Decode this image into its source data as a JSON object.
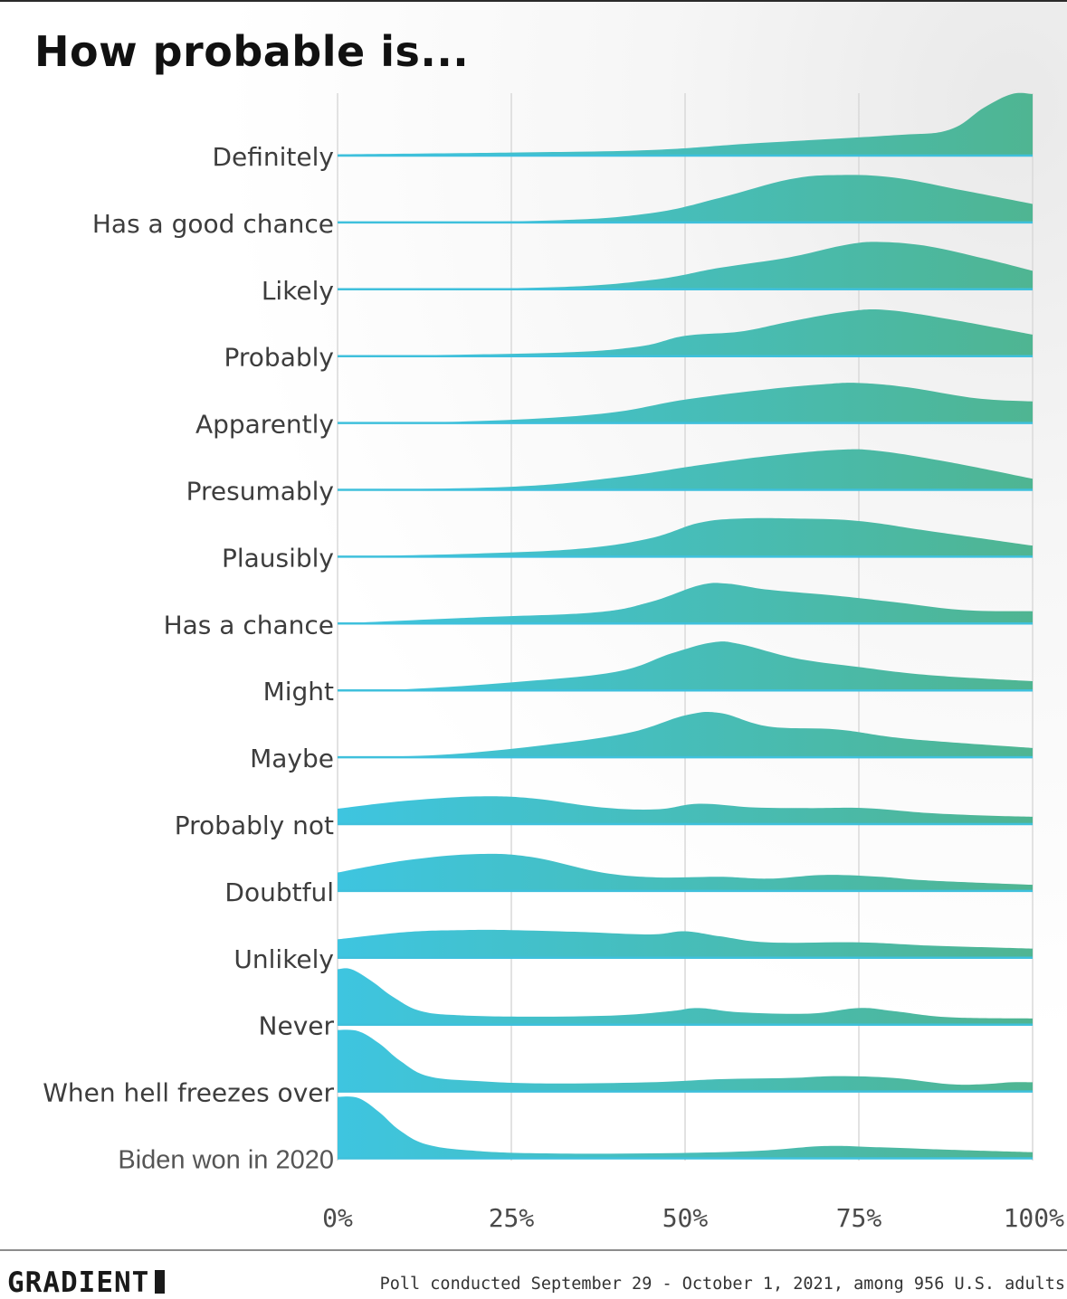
{
  "title": "How probable is...",
  "brand": "GRADIENT",
  "source_note": "Poll conducted September 29 - October 1, 2021, among 956 U.S. adults",
  "colors": {
    "left": "#3ec5e0",
    "right": "#4fb592",
    "grid": "#d9d9d9",
    "baseline": "#3fc0dc"
  },
  "chart_data": {
    "type": "ridgeline",
    "title": "How probable is...",
    "xlabel": "",
    "ylabel": "",
    "xlim": [
      0,
      100
    ],
    "x_ticks": [
      "0%",
      "25%",
      "50%",
      "75%",
      "100%"
    ],
    "x_tick_values": [
      0,
      25,
      50,
      75,
      100
    ],
    "density_scale_max": 1.0,
    "series": [
      {
        "name": "Definitely",
        "points": [
          [
            0,
            0.02
          ],
          [
            25,
            0.05
          ],
          [
            45,
            0.09
          ],
          [
            60,
            0.2
          ],
          [
            80,
            0.33
          ],
          [
            88,
            0.42
          ],
          [
            93,
            0.78
          ],
          [
            97,
            1.0
          ],
          [
            100,
            1.0
          ]
        ]
      },
      {
        "name": "Has a good chance",
        "points": [
          [
            0,
            0
          ],
          [
            30,
            0.03
          ],
          [
            45,
            0.15
          ],
          [
            55,
            0.4
          ],
          [
            65,
            0.7
          ],
          [
            72,
            0.77
          ],
          [
            80,
            0.73
          ],
          [
            90,
            0.52
          ],
          [
            100,
            0.3
          ]
        ]
      },
      {
        "name": "Likely",
        "points": [
          [
            0,
            0
          ],
          [
            30,
            0.03
          ],
          [
            45,
            0.15
          ],
          [
            55,
            0.35
          ],
          [
            65,
            0.52
          ],
          [
            73,
            0.72
          ],
          [
            78,
            0.77
          ],
          [
            85,
            0.7
          ],
          [
            93,
            0.5
          ],
          [
            100,
            0.3
          ]
        ]
      },
      {
        "name": "Probably",
        "points": [
          [
            0,
            0
          ],
          [
            30,
            0.05
          ],
          [
            43,
            0.15
          ],
          [
            50,
            0.33
          ],
          [
            58,
            0.4
          ],
          [
            65,
            0.56
          ],
          [
            73,
            0.72
          ],
          [
            79,
            0.75
          ],
          [
            88,
            0.6
          ],
          [
            100,
            0.35
          ]
        ]
      },
      {
        "name": "Apparently",
        "points": [
          [
            0,
            0
          ],
          [
            20,
            0.03
          ],
          [
            38,
            0.15
          ],
          [
            50,
            0.38
          ],
          [
            62,
            0.55
          ],
          [
            70,
            0.63
          ],
          [
            75,
            0.65
          ],
          [
            82,
            0.58
          ],
          [
            92,
            0.4
          ],
          [
            100,
            0.35
          ]
        ]
      },
      {
        "name": "Presumably",
        "points": [
          [
            0,
            0
          ],
          [
            25,
            0.05
          ],
          [
            40,
            0.2
          ],
          [
            52,
            0.4
          ],
          [
            62,
            0.55
          ],
          [
            72,
            0.65
          ],
          [
            78,
            0.63
          ],
          [
            88,
            0.45
          ],
          [
            100,
            0.18
          ]
        ]
      },
      {
        "name": "Plausibly",
        "points": [
          [
            0,
            0
          ],
          [
            20,
            0.05
          ],
          [
            35,
            0.13
          ],
          [
            45,
            0.3
          ],
          [
            52,
            0.55
          ],
          [
            58,
            0.62
          ],
          [
            66,
            0.62
          ],
          [
            75,
            0.58
          ],
          [
            85,
            0.42
          ],
          [
            100,
            0.18
          ]
        ]
      },
      {
        "name": "Has a chance",
        "points": [
          [
            0,
            0
          ],
          [
            20,
            0.1
          ],
          [
            37,
            0.18
          ],
          [
            45,
            0.35
          ],
          [
            52,
            0.62
          ],
          [
            56,
            0.65
          ],
          [
            62,
            0.55
          ],
          [
            72,
            0.45
          ],
          [
            80,
            0.35
          ],
          [
            90,
            0.22
          ],
          [
            100,
            0.2
          ]
        ]
      },
      {
        "name": "Might",
        "points": [
          [
            0,
            0
          ],
          [
            10,
            0.02
          ],
          [
            25,
            0.13
          ],
          [
            40,
            0.3
          ],
          [
            48,
            0.6
          ],
          [
            54,
            0.78
          ],
          [
            58,
            0.75
          ],
          [
            66,
            0.52
          ],
          [
            75,
            0.38
          ],
          [
            85,
            0.25
          ],
          [
            100,
            0.15
          ]
        ]
      },
      {
        "name": "Maybe",
        "points": [
          [
            0,
            0
          ],
          [
            15,
            0.04
          ],
          [
            30,
            0.2
          ],
          [
            42,
            0.4
          ],
          [
            50,
            0.68
          ],
          [
            55,
            0.72
          ],
          [
            62,
            0.5
          ],
          [
            72,
            0.45
          ],
          [
            82,
            0.3
          ],
          [
            100,
            0.15
          ]
        ]
      },
      {
        "name": "Probably not",
        "points": [
          [
            0,
            0.25
          ],
          [
            10,
            0.38
          ],
          [
            20,
            0.45
          ],
          [
            28,
            0.42
          ],
          [
            38,
            0.27
          ],
          [
            46,
            0.24
          ],
          [
            52,
            0.33
          ],
          [
            60,
            0.27
          ],
          [
            68,
            0.26
          ],
          [
            76,
            0.26
          ],
          [
            85,
            0.18
          ],
          [
            93,
            0.14
          ],
          [
            100,
            0.12
          ]
        ]
      },
      {
        "name": "Doubtful",
        "points": [
          [
            0,
            0.3
          ],
          [
            10,
            0.5
          ],
          [
            20,
            0.6
          ],
          [
            28,
            0.55
          ],
          [
            38,
            0.3
          ],
          [
            46,
            0.22
          ],
          [
            55,
            0.23
          ],
          [
            62,
            0.2
          ],
          [
            70,
            0.26
          ],
          [
            78,
            0.23
          ],
          [
            85,
            0.17
          ],
          [
            100,
            0.1
          ]
        ]
      },
      {
        "name": "Unlikely",
        "points": [
          [
            0,
            0.3
          ],
          [
            10,
            0.42
          ],
          [
            18,
            0.45
          ],
          [
            25,
            0.45
          ],
          [
            35,
            0.42
          ],
          [
            45,
            0.38
          ],
          [
            50,
            0.43
          ],
          [
            55,
            0.35
          ],
          [
            62,
            0.25
          ],
          [
            75,
            0.25
          ],
          [
            85,
            0.2
          ],
          [
            100,
            0.15
          ]
        ]
      },
      {
        "name": "Never",
        "points": [
          [
            0,
            0.9
          ],
          [
            2,
            0.9
          ],
          [
            5,
            0.7
          ],
          [
            8,
            0.45
          ],
          [
            12,
            0.22
          ],
          [
            18,
            0.15
          ],
          [
            28,
            0.13
          ],
          [
            40,
            0.15
          ],
          [
            48,
            0.22
          ],
          [
            52,
            0.27
          ],
          [
            58,
            0.2
          ],
          [
            68,
            0.18
          ],
          [
            75,
            0.27
          ],
          [
            80,
            0.22
          ],
          [
            88,
            0.12
          ],
          [
            100,
            0.1
          ]
        ]
      },
      {
        "name": "When hell freezes over",
        "points": [
          [
            0,
            1.0
          ],
          [
            3,
            0.98
          ],
          [
            6,
            0.78
          ],
          [
            9,
            0.5
          ],
          [
            13,
            0.25
          ],
          [
            20,
            0.17
          ],
          [
            30,
            0.13
          ],
          [
            45,
            0.15
          ],
          [
            55,
            0.2
          ],
          [
            65,
            0.22
          ],
          [
            72,
            0.25
          ],
          [
            80,
            0.22
          ],
          [
            88,
            0.12
          ],
          [
            93,
            0.12
          ],
          [
            97,
            0.15
          ],
          [
            100,
            0.15
          ]
        ]
      },
      {
        "name": "Biden won in 2020",
        "points": [
          [
            0,
            1.0
          ],
          [
            3,
            0.98
          ],
          [
            6,
            0.75
          ],
          [
            9,
            0.45
          ],
          [
            13,
            0.22
          ],
          [
            20,
            0.12
          ],
          [
            30,
            0.08
          ],
          [
            45,
            0.08
          ],
          [
            60,
            0.12
          ],
          [
            70,
            0.2
          ],
          [
            78,
            0.18
          ],
          [
            88,
            0.14
          ],
          [
            100,
            0.1
          ]
        ]
      }
    ]
  }
}
